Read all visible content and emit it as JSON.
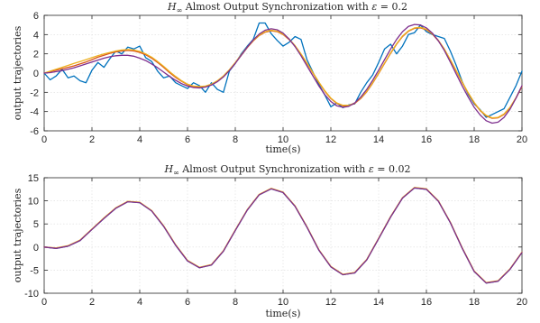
{
  "chart_data": [
    {
      "type": "line",
      "title": "H∞ Almost Output Synchronization with ε = 0.2",
      "title_parts": {
        "symbol": "H",
        "subscript": "∞",
        "middle": " Almost Output Synchronization with ",
        "epsilon": "ε",
        "tail": " = 0.2"
      },
      "xlabel": "time(s)",
      "ylabel": "output trajectories",
      "xlim": [
        0,
        20
      ],
      "ylim": [
        -6,
        6
      ],
      "xticks": [
        0,
        2,
        4,
        6,
        8,
        10,
        12,
        14,
        16,
        18,
        20
      ],
      "yticks": [
        -6,
        -4,
        -2,
        0,
        2,
        4,
        6
      ],
      "grid": true,
      "series": [
        {
          "color": "#0072bd",
          "x": [
            0,
            0.25,
            0.5,
            0.75,
            1,
            1.25,
            1.5,
            1.75,
            2,
            2.25,
            2.5,
            2.75,
            3,
            3.25,
            3.5,
            3.75,
            4,
            4.25,
            4.5,
            4.75,
            5,
            5.25,
            5.5,
            5.75,
            6,
            6.25,
            6.5,
            6.75,
            7,
            7.25,
            7.5,
            7.75,
            8,
            8.25,
            8.5,
            8.75,
            9,
            9.25,
            9.5,
            9.75,
            10,
            10.25,
            10.5,
            10.75,
            11,
            11.25,
            11.5,
            11.75,
            12,
            12.25,
            12.5,
            12.75,
            13,
            13.25,
            13.5,
            13.75,
            14,
            14.25,
            14.5,
            14.75,
            15,
            15.25,
            15.5,
            15.75,
            16,
            16.25,
            16.5,
            16.75,
            17,
            17.25,
            17.5,
            17.75,
            18,
            18.25,
            18.5,
            18.75,
            19,
            19.25,
            19.5,
            19.75,
            20
          ],
          "y": [
            0,
            -0.7,
            -0.3,
            0.4,
            -0.5,
            -0.3,
            -0.8,
            -1.0,
            0.3,
            1.1,
            0.6,
            1.5,
            2.3,
            2.0,
            2.7,
            2.5,
            2.8,
            1.6,
            1.2,
            0.2,
            -0.5,
            -0.3,
            -1.0,
            -1.3,
            -1.6,
            -1.0,
            -1.3,
            -2.0,
            -1.0,
            -1.7,
            -2.0,
            0.2,
            1.0,
            2.0,
            2.8,
            3.5,
            5.2,
            5.2,
            4.1,
            3.4,
            2.8,
            3.2,
            3.8,
            3.5,
            1.4,
            0.1,
            -1.2,
            -2.3,
            -3.5,
            -3.1,
            -3.6,
            -3.3,
            -3.2,
            -2.0,
            -1.0,
            -0.2,
            1.1,
            2.5,
            3.0,
            2.0,
            2.8,
            4.0,
            4.2,
            5.0,
            4.3,
            4.0,
            3.8,
            3.6,
            2.3,
            0.8,
            -0.9,
            -2.2,
            -3.2,
            -3.8,
            -4.6,
            -4.3,
            -4.0,
            -3.7,
            -2.5,
            -1.3,
            0.2
          ]
        },
        {
          "color": "#d95319",
          "x": [
            0,
            0.25,
            0.5,
            0.75,
            1,
            1.25,
            1.5,
            1.75,
            2,
            2.25,
            2.5,
            2.75,
            3,
            3.25,
            3.5,
            3.75,
            4,
            4.25,
            4.5,
            4.75,
            5,
            5.25,
            5.5,
            5.75,
            6,
            6.25,
            6.5,
            6.75,
            7,
            7.25,
            7.5,
            7.75,
            8,
            8.25,
            8.5,
            8.75,
            9,
            9.25,
            9.5,
            9.75,
            10,
            10.25,
            10.5,
            10.75,
            11,
            11.25,
            11.5,
            11.75,
            12,
            12.25,
            12.5,
            12.75,
            13,
            13.25,
            13.5,
            13.75,
            14,
            14.25,
            14.5,
            14.75,
            15,
            15.25,
            15.5,
            15.75,
            16,
            16.25,
            16.5,
            16.75,
            17,
            17.25,
            17.5,
            17.75,
            18,
            18.25,
            18.5,
            18.75,
            19,
            19.25,
            19.5,
            19.75,
            20
          ],
          "y": [
            0,
            0.15,
            0.3,
            0.45,
            0.6,
            0.75,
            0.95,
            1.15,
            1.4,
            1.65,
            1.85,
            2.05,
            2.2,
            2.3,
            2.35,
            2.3,
            2.15,
            1.9,
            1.55,
            1.1,
            0.6,
            0.05,
            -0.45,
            -0.85,
            -1.2,
            -1.4,
            -1.45,
            -1.4,
            -1.2,
            -0.85,
            -0.35,
            0.3,
            1.05,
            1.85,
            2.65,
            3.35,
            3.9,
            4.25,
            4.4,
            4.3,
            4.0,
            3.5,
            2.8,
            1.95,
            1.0,
            0.0,
            -1.0,
            -1.9,
            -2.65,
            -3.15,
            -3.4,
            -3.4,
            -3.15,
            -2.65,
            -1.95,
            -1.05,
            -0.05,
            1.0,
            2.05,
            3.0,
            3.8,
            4.35,
            4.65,
            4.7,
            4.5,
            4.05,
            3.35,
            2.45,
            1.35,
            0.2,
            -1.0,
            -2.1,
            -3.1,
            -3.9,
            -4.45,
            -4.7,
            -4.65,
            -4.3,
            -3.6,
            -2.6,
            -1.4
          ]
        },
        {
          "color": "#edb120",
          "x": [
            0,
            0.25,
            0.5,
            0.75,
            1,
            1.25,
            1.5,
            1.75,
            2,
            2.25,
            2.5,
            2.75,
            3,
            3.25,
            3.5,
            3.75,
            4,
            4.25,
            4.5,
            4.75,
            5,
            5.25,
            5.5,
            5.75,
            6,
            6.25,
            6.5,
            6.75,
            7,
            7.25,
            7.5,
            7.75,
            8,
            8.25,
            8.5,
            8.75,
            9,
            9.25,
            9.5,
            9.75,
            10,
            10.25,
            10.5,
            10.75,
            11,
            11.25,
            11.5,
            11.75,
            12,
            12.25,
            12.5,
            12.75,
            13,
            13.25,
            13.5,
            13.75,
            14,
            14.25,
            14.5,
            14.75,
            15,
            15.25,
            15.5,
            15.75,
            16,
            16.25,
            16.5,
            16.75,
            17,
            17.25,
            17.5,
            17.75,
            18,
            18.25,
            18.5,
            18.75,
            19,
            19.25,
            19.5,
            19.75,
            20
          ],
          "y": [
            0,
            0.2,
            0.4,
            0.6,
            0.8,
            1.0,
            1.2,
            1.4,
            1.6,
            1.8,
            2.0,
            2.15,
            2.3,
            2.4,
            2.45,
            2.4,
            2.25,
            2.0,
            1.65,
            1.2,
            0.7,
            0.15,
            -0.35,
            -0.8,
            -1.15,
            -1.35,
            -1.4,
            -1.35,
            -1.15,
            -0.8,
            -0.3,
            0.35,
            1.1,
            1.9,
            2.7,
            3.4,
            3.95,
            4.3,
            4.45,
            4.35,
            4.05,
            3.55,
            2.85,
            2.0,
            1.05,
            0.05,
            -0.95,
            -1.85,
            -2.6,
            -3.1,
            -3.35,
            -3.35,
            -3.1,
            -2.6,
            -1.9,
            -1.0,
            0.0,
            1.05,
            2.1,
            3.05,
            3.85,
            4.4,
            4.7,
            4.75,
            4.55,
            4.1,
            3.4,
            2.5,
            1.4,
            0.25,
            -0.95,
            -2.05,
            -3.05,
            -3.85,
            -4.4,
            -4.65,
            -4.6,
            -4.25,
            -3.55,
            -2.55,
            -1.35
          ]
        },
        {
          "color": "#7e2f8e",
          "x": [
            0,
            0.25,
            0.5,
            0.75,
            1,
            1.25,
            1.5,
            1.75,
            2,
            2.25,
            2.5,
            2.75,
            3,
            3.25,
            3.5,
            3.75,
            4,
            4.25,
            4.5,
            4.75,
            5,
            5.25,
            5.5,
            5.75,
            6,
            6.25,
            6.5,
            6.75,
            7,
            7.25,
            7.5,
            7.75,
            8,
            8.25,
            8.5,
            8.75,
            9,
            9.25,
            9.5,
            9.75,
            10,
            10.25,
            10.5,
            10.75,
            11,
            11.25,
            11.5,
            11.75,
            12,
            12.25,
            12.5,
            12.75,
            13,
            13.25,
            13.5,
            13.75,
            14,
            14.25,
            14.5,
            14.75,
            15,
            15.25,
            15.5,
            15.75,
            16,
            16.25,
            16.5,
            16.75,
            17,
            17.25,
            17.5,
            17.75,
            18,
            18.25,
            18.5,
            18.75,
            19,
            19.25,
            19.5,
            19.75,
            20
          ],
          "y": [
            0,
            0.05,
            0.15,
            0.25,
            0.4,
            0.55,
            0.75,
            0.95,
            1.15,
            1.35,
            1.55,
            1.7,
            1.8,
            1.85,
            1.85,
            1.75,
            1.55,
            1.3,
            0.95,
            0.55,
            0.1,
            -0.35,
            -0.75,
            -1.1,
            -1.35,
            -1.5,
            -1.55,
            -1.45,
            -1.25,
            -0.9,
            -0.4,
            0.25,
            1.0,
            1.85,
            2.7,
            3.45,
            4.05,
            4.45,
            4.6,
            4.5,
            4.15,
            3.55,
            2.75,
            1.8,
            0.75,
            -0.3,
            -1.35,
            -2.25,
            -2.95,
            -3.4,
            -3.55,
            -3.45,
            -3.1,
            -2.5,
            -1.7,
            -0.75,
            0.3,
            1.4,
            2.5,
            3.5,
            4.3,
            4.85,
            5.05,
            5.0,
            4.7,
            4.15,
            3.35,
            2.35,
            1.15,
            -0.1,
            -1.35,
            -2.5,
            -3.55,
            -4.35,
            -4.95,
            -5.2,
            -5.1,
            -4.6,
            -3.75,
            -2.6,
            -1.3
          ]
        }
      ]
    },
    {
      "type": "line",
      "title": "H∞ Almost Output Synchronization with ε = 0.02",
      "title_parts": {
        "symbol": "H",
        "subscript": "∞",
        "middle": " Almost Output Synchronization with ",
        "epsilon": "ε",
        "tail": " = 0.02"
      },
      "xlabel": "time(s)",
      "ylabel": "output trajectories",
      "xlim": [
        0,
        20
      ],
      "ylim": [
        -10,
        15
      ],
      "xticks": [
        0,
        2,
        4,
        6,
        8,
        10,
        12,
        14,
        16,
        18,
        20
      ],
      "yticks": [
        -10,
        -5,
        0,
        5,
        10,
        15
      ],
      "grid": true,
      "series": [
        {
          "color": "#0072bd",
          "x": [
            0,
            0.5,
            1,
            1.5,
            2,
            2.5,
            3,
            3.5,
            4,
            4.5,
            5,
            5.5,
            6,
            6.5,
            7,
            7.5,
            8,
            8.5,
            9,
            9.5,
            10,
            10.5,
            11,
            11.5,
            12,
            12.5,
            13,
            13.5,
            14,
            14.5,
            15,
            15.5,
            16,
            16.5,
            17,
            17.5,
            18,
            18.5,
            19,
            19.5,
            20
          ],
          "y": [
            0,
            -0.3,
            0.2,
            1.4,
            3.8,
            6.2,
            8.4,
            9.8,
            9.6,
            7.8,
            4.5,
            0.4,
            -3.0,
            -4.5,
            -3.9,
            -0.9,
            3.6,
            8.0,
            11.3,
            12.6,
            11.8,
            8.8,
            4.3,
            -0.7,
            -4.3,
            -6.0,
            -5.6,
            -2.8,
            1.8,
            6.5,
            10.6,
            12.8,
            12.5,
            9.9,
            5.3,
            -0.3,
            -5.3,
            -7.8,
            -7.4,
            -4.8,
            -1.2
          ]
        },
        {
          "color": "#d95319",
          "x": [
            0,
            0.5,
            1,
            1.5,
            2,
            2.5,
            3,
            3.5,
            4,
            4.5,
            5,
            5.5,
            6,
            6.5,
            7,
            7.5,
            8,
            8.5,
            9,
            9.5,
            10,
            10.5,
            11,
            11.5,
            12,
            12.5,
            13,
            13.5,
            14,
            14.5,
            15,
            15.5,
            16,
            16.5,
            17,
            17.5,
            18,
            18.5,
            19,
            19.5,
            20
          ],
          "y": [
            0,
            -0.25,
            0.25,
            1.45,
            3.85,
            6.25,
            8.45,
            9.85,
            9.65,
            7.85,
            4.55,
            0.45,
            -2.95,
            -4.45,
            -3.85,
            -0.85,
            3.65,
            8.05,
            11.35,
            12.65,
            11.85,
            8.85,
            4.35,
            -0.65,
            -4.25,
            -5.95,
            -5.55,
            -2.75,
            1.85,
            6.55,
            10.65,
            12.85,
            12.55,
            9.95,
            5.35,
            -0.25,
            -5.25,
            -7.75,
            -7.35,
            -4.75,
            -1.15
          ]
        },
        {
          "color": "#edb120",
          "x": [
            0,
            0.5,
            1,
            1.5,
            2,
            2.5,
            3,
            3.5,
            4,
            4.5,
            5,
            5.5,
            6,
            6.5,
            7,
            7.5,
            8,
            8.5,
            9,
            9.5,
            10,
            10.5,
            11,
            11.5,
            12,
            12.5,
            13,
            13.5,
            14,
            14.5,
            15,
            15.5,
            16,
            16.5,
            17,
            17.5,
            18,
            18.5,
            19,
            19.5,
            20
          ],
          "y": [
            0,
            -0.2,
            0.3,
            1.5,
            3.9,
            6.3,
            8.5,
            9.9,
            9.7,
            7.9,
            4.6,
            0.5,
            -2.9,
            -4.4,
            -3.8,
            -0.8,
            3.7,
            8.1,
            11.4,
            12.7,
            11.9,
            8.9,
            4.4,
            -0.6,
            -4.2,
            -5.9,
            -5.5,
            -2.7,
            1.9,
            6.6,
            10.7,
            12.9,
            12.6,
            10.0,
            5.4,
            -0.2,
            -5.2,
            -7.7,
            -7.3,
            -4.7,
            -1.1
          ]
        },
        {
          "color": "#7e2f8e",
          "x": [
            0,
            0.5,
            1,
            1.5,
            2,
            2.5,
            3,
            3.5,
            4,
            4.5,
            5,
            5.5,
            6,
            6.5,
            7,
            7.5,
            8,
            8.5,
            9,
            9.5,
            10,
            10.5,
            11,
            11.5,
            12,
            12.5,
            13,
            13.5,
            14,
            14.5,
            15,
            15.5,
            16,
            16.5,
            17,
            17.5,
            18,
            18.5,
            19,
            19.5,
            20
          ],
          "y": [
            0,
            -0.3,
            0.2,
            1.4,
            3.8,
            6.2,
            8.4,
            9.8,
            9.6,
            7.8,
            4.5,
            0.4,
            -3.0,
            -4.5,
            -3.9,
            -0.9,
            3.6,
            8.0,
            11.3,
            12.6,
            11.8,
            8.8,
            4.3,
            -0.7,
            -4.3,
            -6.0,
            -5.6,
            -2.8,
            1.8,
            6.5,
            10.6,
            12.8,
            12.5,
            9.9,
            5.3,
            -0.3,
            -5.3,
            -7.8,
            -7.4,
            -4.8,
            -1.2
          ]
        }
      ]
    }
  ]
}
